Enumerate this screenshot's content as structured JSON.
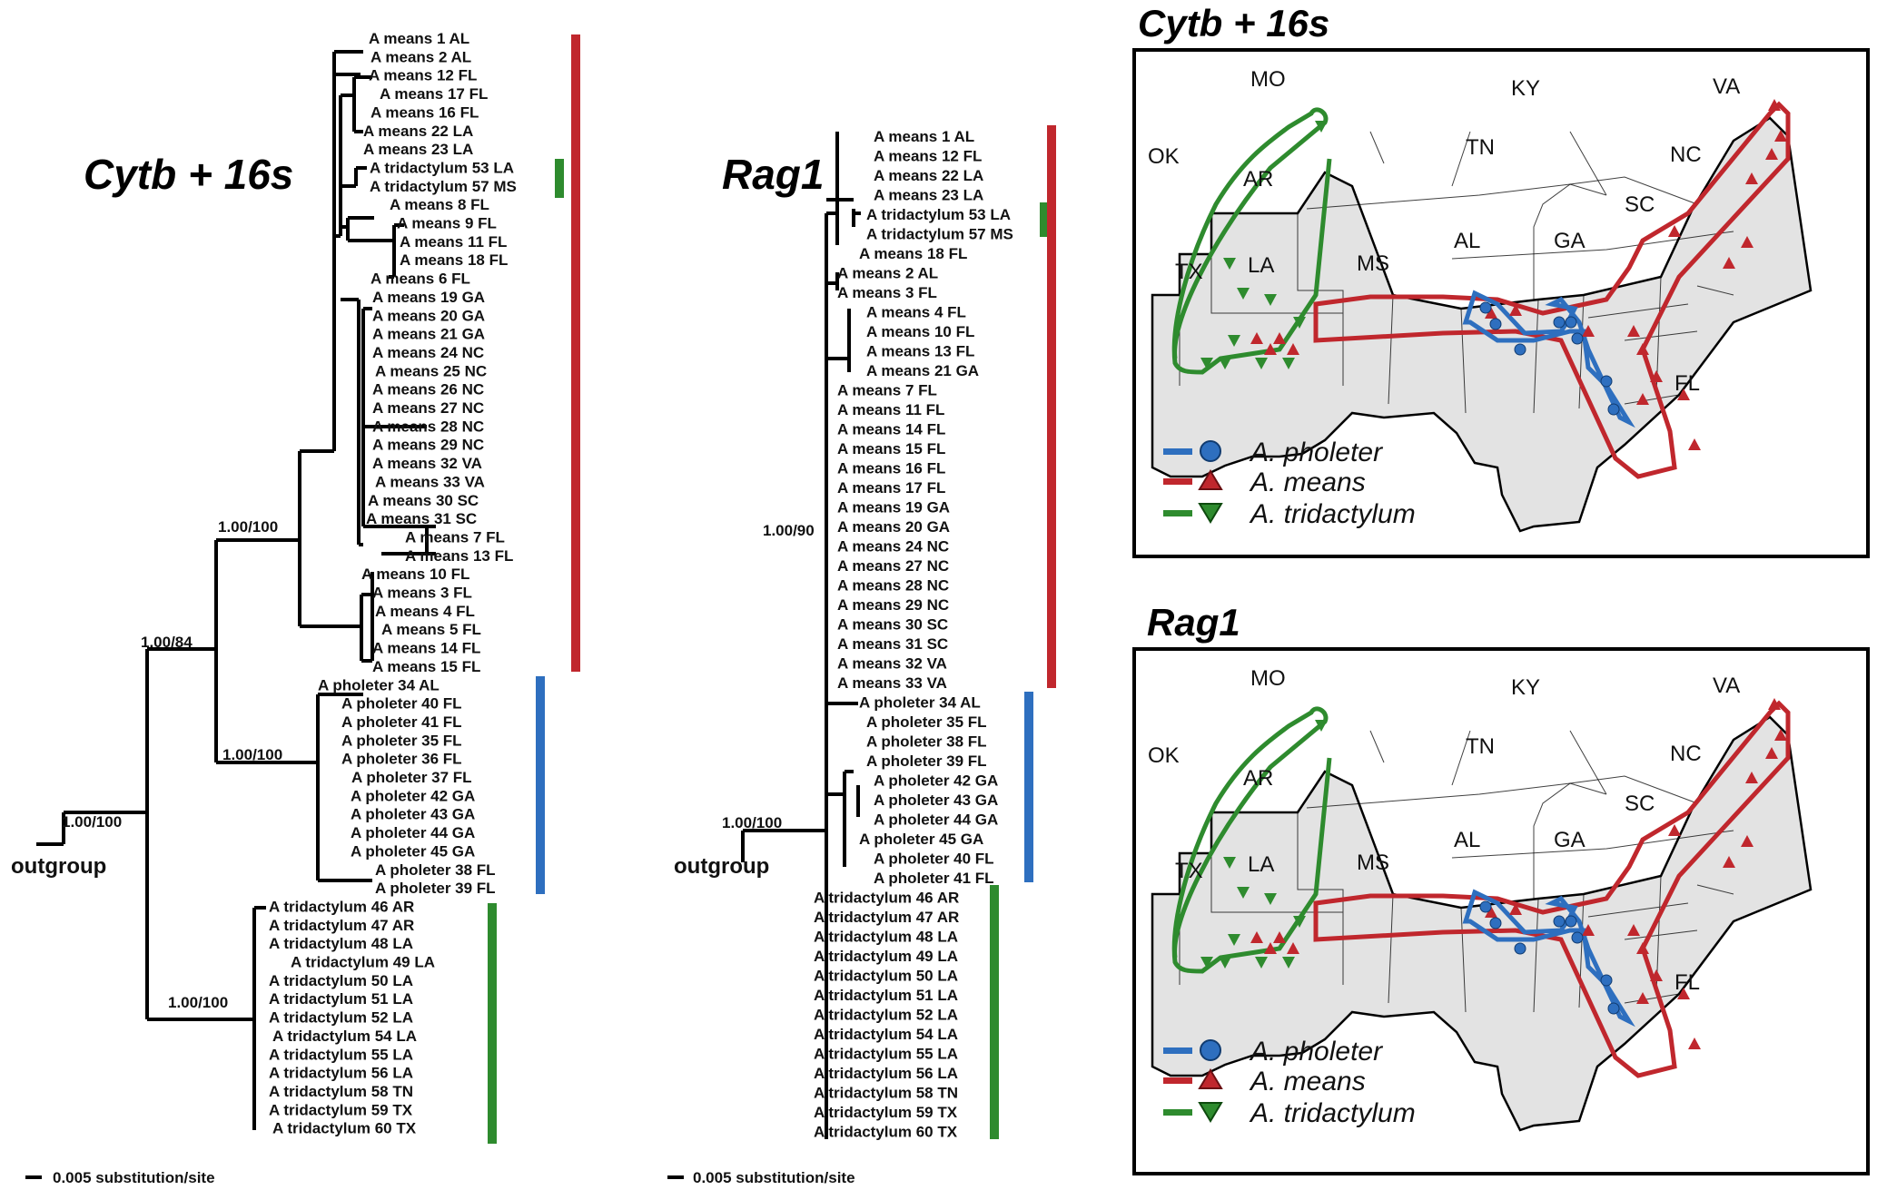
{
  "colors": {
    "means": "#c0272d",
    "pholeter": "#2e6fbf",
    "tridactylum": "#2e8b2e",
    "shade": "#e3e3e3"
  },
  "panel1": {
    "title": "Cytb + 16s",
    "outgroup": "outgroup",
    "scale_label": "0.005 substitution/site",
    "supports": [
      "1.00/100",
      "1.00/84",
      "1.00/100",
      "1.00/100",
      "1.00/100"
    ],
    "tips": [
      "A means 1 AL",
      "A means 2 AL",
      "A means 12 FL",
      "A means 17 FL",
      "A means 16 FL",
      "A means 22 LA",
      "A means 23 LA",
      "A tridactylum 53 LA",
      "A tridactylum 57 MS",
      "A means 8 FL",
      "A means 9 FL",
      "A means 11 FL",
      "A means 18 FL",
      "A means 6 FL",
      "A means 19 GA",
      "A means 20 GA",
      "A means 21 GA",
      "A means 24 NC",
      "A means 25 NC",
      "A means 26 NC",
      "A means 27 NC",
      "A means 28 NC",
      "A means 29 NC",
      "A means 32 VA",
      "A means 33 VA",
      "A means 30 SC",
      "A means 31 SC",
      "A means 7 FL",
      "A means 13 FL",
      "A means 10 FL",
      "A means 3 FL",
      "A means 4 FL",
      "A means 5 FL",
      "A means 14 FL",
      "A means 15 FL",
      "A pholeter 34 AL",
      "A pholeter 40 FL",
      "A pholeter 41 FL",
      "A pholeter 35 FL",
      "A pholeter 36 FL",
      "A pholeter 37 FL",
      "A pholeter 42 GA",
      "A pholeter 43 GA",
      "A pholeter 44 GA",
      "A pholeter 45 GA",
      "A pholeter 38 FL",
      "A pholeter 39 FL",
      "A tridactylum 46 AR",
      "A tridactylum 47 AR",
      "A tridactylum 48 LA",
      "A tridactylum 49 LA",
      "A tridactylum 50 LA",
      "A tridactylum 51 LA",
      "A tridactylum 52 LA",
      "A tridactylum 54 LA",
      "A tridactylum 55 LA",
      "A tridactylum 56 LA",
      "A tridactylum 58 TN",
      "A tridactylum 59 TX",
      "A tridactylum 60 TX"
    ]
  },
  "panel2": {
    "title": "Rag1",
    "outgroup": "outgroup",
    "scale_label": "0.005 substitution/site",
    "supports": [
      "1.00/90",
      "1.00/100"
    ],
    "tips": [
      "A means 1 AL",
      "A means 12 FL",
      "A means 22 LA",
      "A means 23 LA",
      "A tridactylum 53 LA",
      "A tridactylum 57 MS",
      "A means 18 FL",
      "A means 2 AL",
      "A means 3 FL",
      "A means 4 FL",
      "A means 10 FL",
      "A means 13 FL",
      "A means 21 GA",
      "A means 7 FL",
      "A means 11 FL",
      "A means 14 FL",
      "A means 15 FL",
      "A means 16 FL",
      "A means 17 FL",
      "A means 19 GA",
      "A means 20 GA",
      "A means 24 NC",
      "A means 27 NC",
      "A means 28 NC",
      "A means 29 NC",
      "A means 30 SC",
      "A means 31 SC",
      "A means 32 VA",
      "A means 33 VA",
      "A pholeter 34 AL",
      "A pholeter 35 FL",
      "A pholeter 38 FL",
      "A pholeter 39 FL",
      "A pholeter 42 GA",
      "A pholeter 43 GA",
      "A pholeter 44 GA",
      "A pholeter 45 GA",
      "A pholeter 40 FL",
      "A pholeter 41 FL",
      "A tridactylum 46 AR",
      "A tridactylum 47 AR",
      "A tridactylum 48 LA",
      "A tridactylum 49 LA",
      "A tridactylum 50 LA",
      "A tridactylum 51 LA",
      "A tridactylum 52 LA",
      "A tridactylum 54 LA",
      "A tridactylum 55 LA",
      "A tridactylum 56 LA",
      "A tridactylum 58 TN",
      "A tridactylum 59 TX",
      "A tridactylum 60 TX"
    ]
  },
  "maps": [
    {
      "title": "Cytb + 16s"
    },
    {
      "title": "Rag1"
    }
  ],
  "states": [
    "MO",
    "KY",
    "VA",
    "OK",
    "TN",
    "NC",
    "AR",
    "SC",
    "MS",
    "AL",
    "GA",
    "TX",
    "LA",
    "FL"
  ],
  "legend": [
    "A. pholeter",
    "A. means",
    "A. tridactylum"
  ]
}
